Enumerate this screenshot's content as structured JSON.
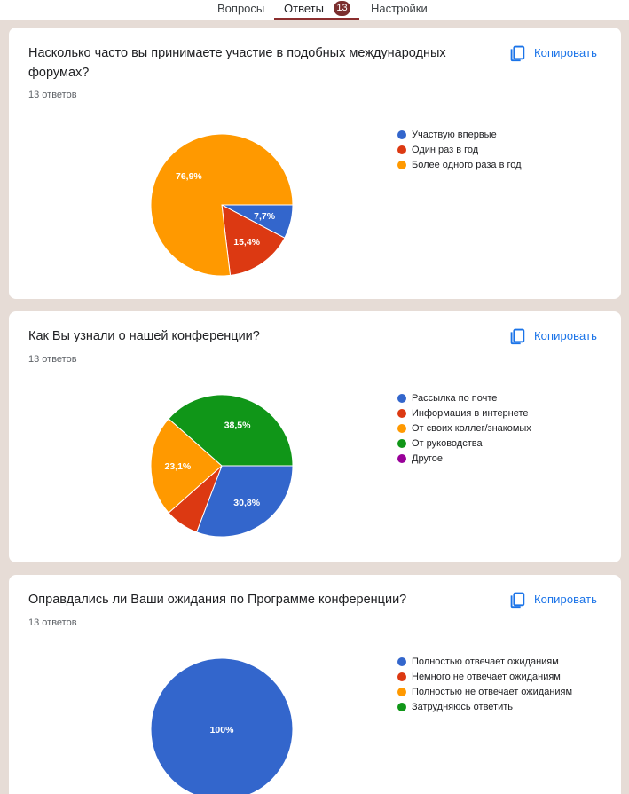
{
  "tabs": {
    "questions": "Вопросы",
    "responses": "Ответы",
    "responses_count": "13",
    "settings": "Настройки"
  },
  "copy_label": "Копировать",
  "cards": [
    {
      "title": "Насколько часто вы принимаете участие в подобных международных форумах?",
      "count": "13 ответов"
    },
    {
      "title": "Как Вы узнали о нашей конференции?",
      "count": "13 ответов"
    },
    {
      "title": "Оправдались ли Ваши ожидания по Программе конференции?",
      "count": "13 ответов"
    }
  ],
  "colors": {
    "blue": "#3366cc",
    "red": "#dc3912",
    "orange": "#ff9900",
    "green": "#109618",
    "purple": "#990099"
  },
  "chart_data": [
    {
      "type": "pie",
      "title": "Насколько часто вы принимаете участие в подобных международных форумах?",
      "series": [
        {
          "name": "Участвую впервые",
          "value": 7.7,
          "label": "7,7%",
          "color": "#3366cc"
        },
        {
          "name": "Один раз в год",
          "value": 15.4,
          "label": "15,4%",
          "color": "#dc3912"
        },
        {
          "name": "Более одного раза в год",
          "value": 76.9,
          "label": "76,9%",
          "color": "#ff9900"
        }
      ]
    },
    {
      "type": "pie",
      "title": "Как Вы узнали о нашей конференции?",
      "series": [
        {
          "name": "Рассылка по почте",
          "value": 30.8,
          "label": "30,8%",
          "color": "#3366cc"
        },
        {
          "name": "Информация в интернете",
          "value": 7.7,
          "label": "",
          "color": "#dc3912"
        },
        {
          "name": "От своих коллег/знакомых",
          "value": 23.1,
          "label": "23,1%",
          "color": "#ff9900"
        },
        {
          "name": "От руководства",
          "value": 38.5,
          "label": "38,5%",
          "color": "#109618"
        },
        {
          "name": "Другое",
          "value": 0,
          "label": "",
          "color": "#990099"
        }
      ]
    },
    {
      "type": "pie",
      "title": "Оправдались ли Ваши ожидания по Программе конференции?",
      "series": [
        {
          "name": "Полностью отвечает ожиданиям",
          "value": 100,
          "label": "100%",
          "color": "#3366cc"
        },
        {
          "name": "Немного не отвечает ожиданиям",
          "value": 0,
          "label": "",
          "color": "#dc3912"
        },
        {
          "name": "Полностью не отвечает ожиданиям",
          "value": 0,
          "label": "",
          "color": "#ff9900"
        },
        {
          "name": "Затрудняюсь ответить",
          "value": 0,
          "label": "",
          "color": "#109618"
        }
      ]
    }
  ]
}
